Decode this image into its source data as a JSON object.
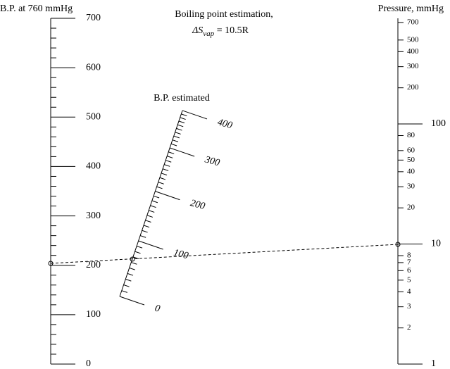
{
  "title": "Boiling point estimation,",
  "formula": {
    "symbol": "ΔS",
    "subscript": "vap",
    "rest": " = 10.5R"
  },
  "left_scale": {
    "label": "B.P. at 760 mmHg",
    "ticks": [
      0,
      100,
      200,
      300,
      400,
      500,
      600,
      700
    ]
  },
  "middle_scale": {
    "label": "B.P. estimated",
    "ticks": [
      0,
      100,
      200,
      300,
      400
    ]
  },
  "right_scale": {
    "label": "Pressure, mmHg",
    "major_ticks": [
      1,
      10,
      100
    ],
    "minor_ticks": [
      2,
      3,
      4,
      5,
      6,
      7,
      8,
      20,
      30,
      40,
      50,
      60,
      80,
      200,
      300,
      400,
      500,
      700
    ]
  }
}
